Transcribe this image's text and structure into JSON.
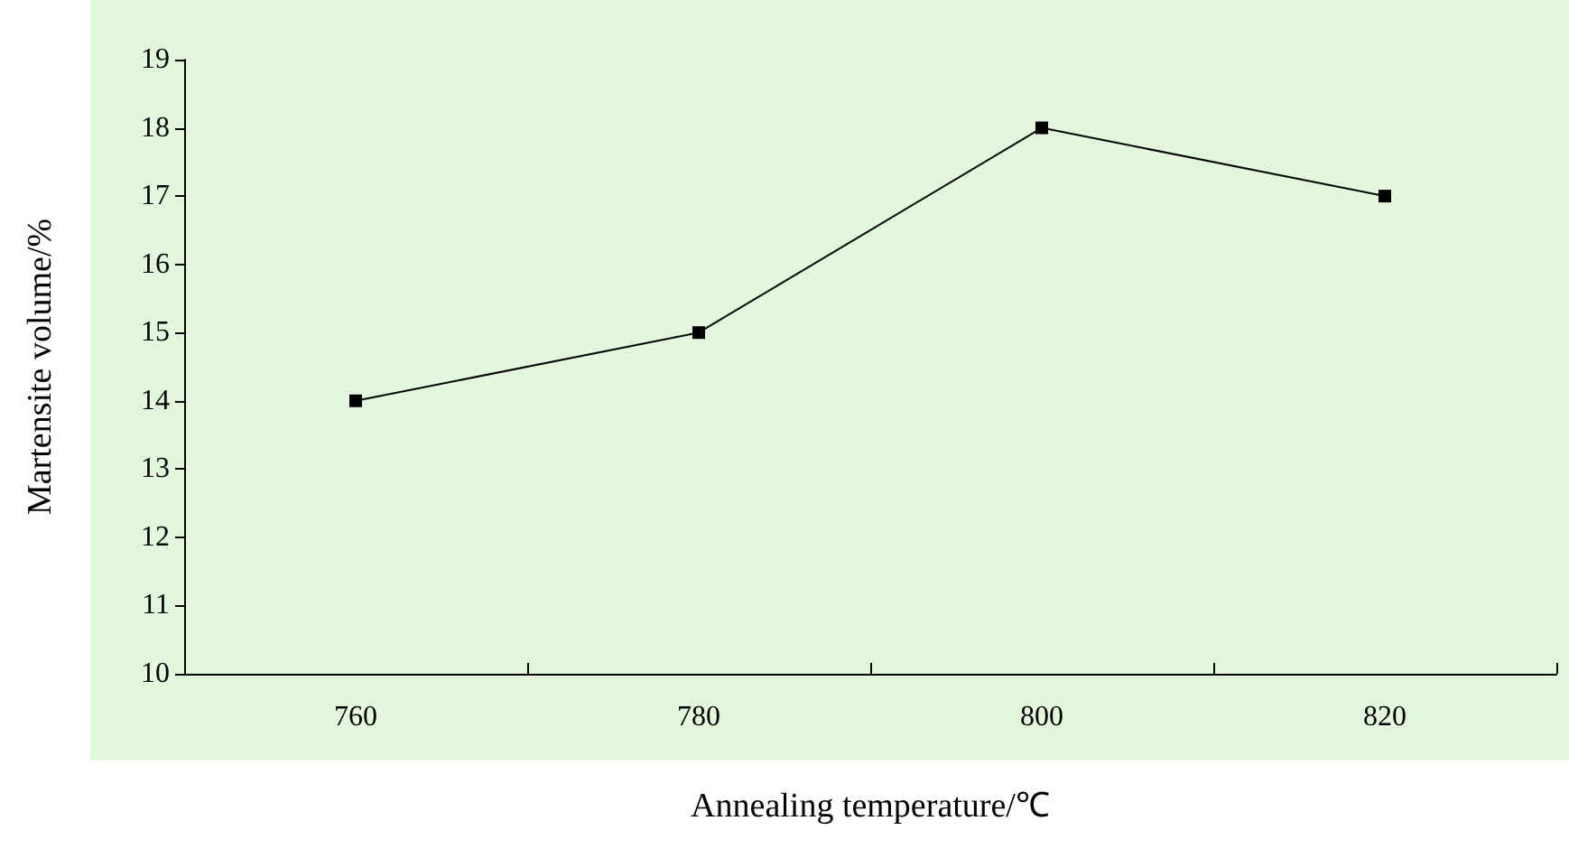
{
  "chart_data": {
    "type": "line",
    "xlabel": "Annealing temperature/℃",
    "ylabel": "Martensite volume/%",
    "categories": [
      "760",
      "780",
      "800",
      "820"
    ],
    "series": [
      {
        "color": "#000000",
        "values": [
          14,
          15,
          18,
          17
        ]
      }
    ],
    "ylim": [
      10,
      19
    ],
    "yticks": [
      10,
      11,
      12,
      13,
      14,
      15,
      16,
      17,
      18,
      19
    ],
    "grid": false,
    "marker": "square",
    "line_style": "solid"
  }
}
